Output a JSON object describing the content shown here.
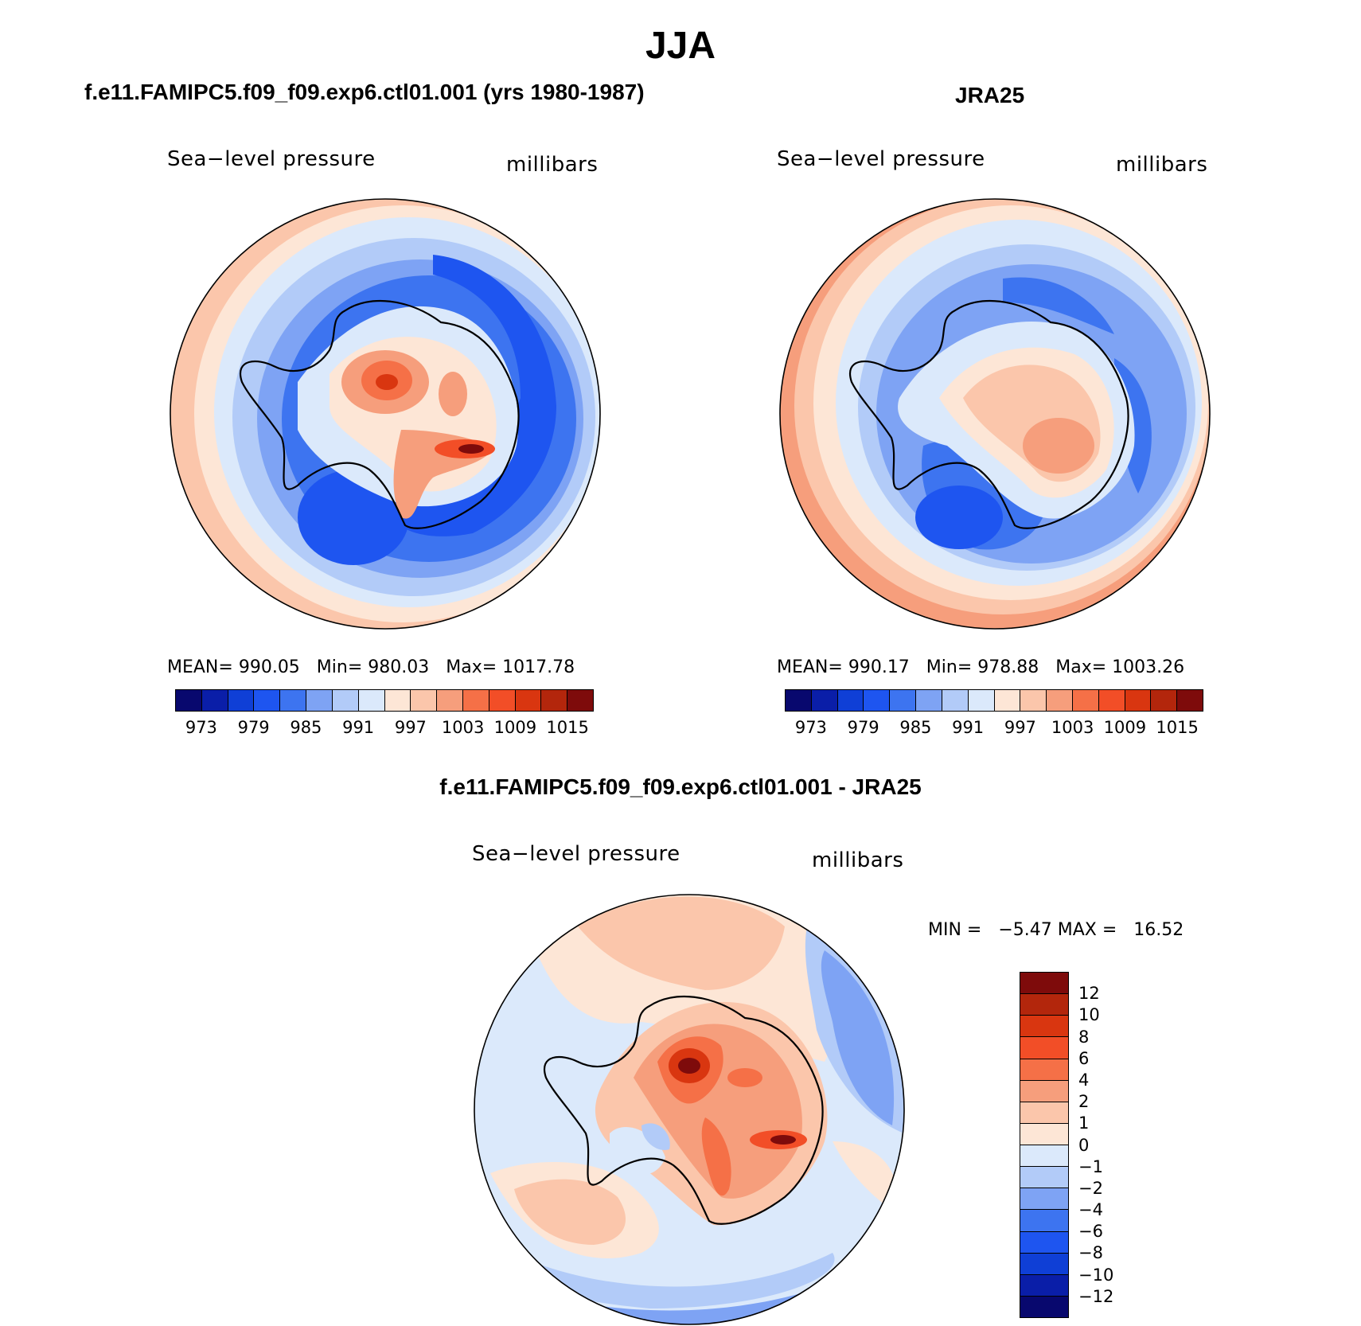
{
  "title": "JJA",
  "panels": [
    {
      "header": "f.e11.FAMIPC5.f09_f09.exp6.ctl01.001 (yrs 1980-1987)",
      "left_label": "Sea−level pressure",
      "right_label": "millibars",
      "stats": {
        "mean_label": "MEAN=",
        "mean": "990.05",
        "min_label": "Min=",
        "min": "980.03",
        "max_label": "Max=",
        "max": "1017.78"
      }
    },
    {
      "header": "JRA25",
      "left_label": "Sea−level pressure",
      "right_label": "millibars",
      "stats": {
        "mean_label": "MEAN=",
        "mean": "990.17",
        "min_label": "Min=",
        "min": "978.88",
        "max_label": "Max=",
        "max": "1003.26"
      }
    },
    {
      "header": "f.e11.FAMIPC5.f09_f09.exp6.ctl01.001 - JRA25",
      "left_label": "Sea−level pressure",
      "right_label": "millibars",
      "minmax": {
        "min_label": "MIN =",
        "min": "−5.47",
        "max_label": "MAX =",
        "max": "16.52"
      }
    }
  ],
  "colorbar_abs": {
    "colors": [
      "#08086e",
      "#0a1ea8",
      "#0f3fd6",
      "#1e55f0",
      "#3d74f0",
      "#7ea3f4",
      "#b2cbf8",
      "#dbe9fb",
      "#fde6d6",
      "#fbc6ab",
      "#f69e7c",
      "#f57047",
      "#f24e27",
      "#d93610",
      "#b3260c",
      "#7e0b0b"
    ],
    "labels": [
      "973",
      "979",
      "985",
      "991",
      "997",
      "1003",
      "1009",
      "1015"
    ]
  },
  "colorbar_diff": {
    "colors": [
      "#7e0b0b",
      "#b3260c",
      "#d93610",
      "#f24e27",
      "#f57047",
      "#f69e7c",
      "#fbc6ab",
      "#fde6d6",
      "#dbe9fb",
      "#b2cbf8",
      "#7ea3f4",
      "#3d74f0",
      "#1e55f0",
      "#0f3fd6",
      "#0a1ea8",
      "#08086e"
    ],
    "labels": [
      "12",
      "10",
      "8",
      "6",
      "4",
      "2",
      "1",
      "0",
      "−1",
      "−2",
      "−4",
      "−6",
      "−8",
      "−10",
      "−12"
    ]
  }
}
